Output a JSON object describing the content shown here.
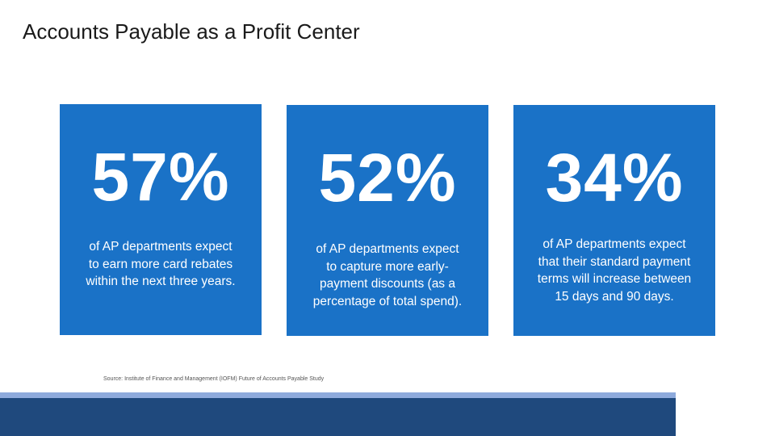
{
  "header": {
    "title": "Accounts Payable as a Profit Center"
  },
  "cards": [
    {
      "stat": "57%",
      "lines": [
        "of AP departments expect",
        "to earn more card rebates",
        "within the next three years."
      ]
    },
    {
      "stat": "52%",
      "lines": [
        "of AP departments expect",
        "to capture more early-",
        "payment discounts (as a",
        "percentage of total spend)."
      ]
    },
    {
      "stat": "34%",
      "lines": [
        "of AP departments expect",
        "that their standard payment",
        "terms will increase between",
        "15 days and 90 days."
      ]
    }
  ],
  "footer": {
    "source": "Source: Institute of Finance and Management (IOFM) Future of Accounts Payable Study"
  }
}
